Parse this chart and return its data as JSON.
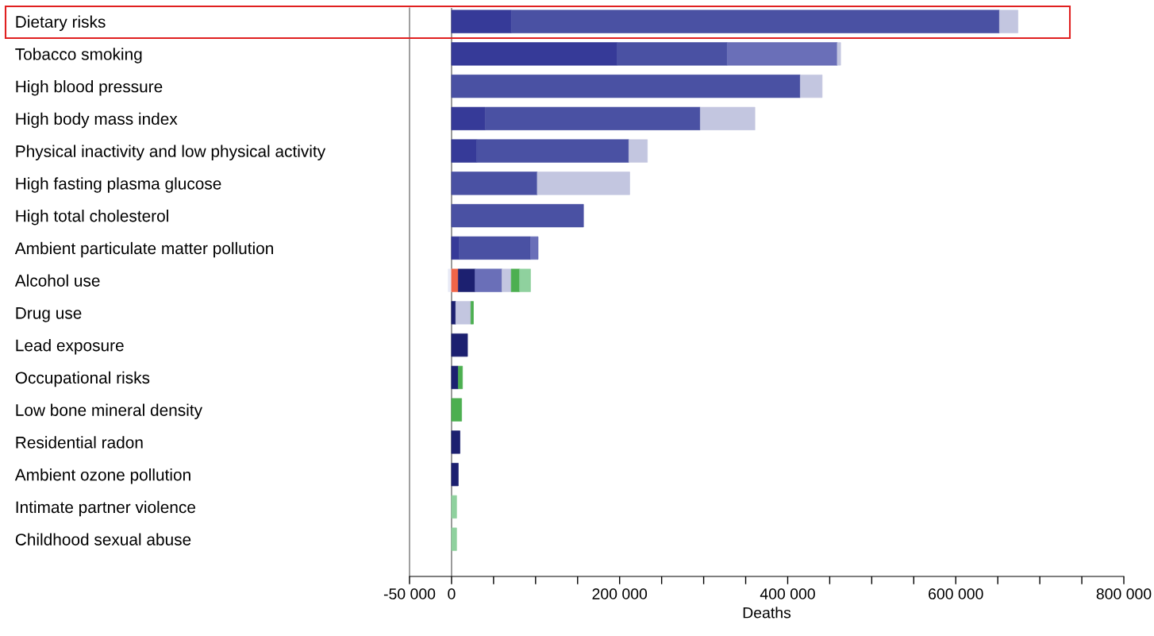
{
  "chart_data": {
    "type": "bar",
    "orientation": "horizontal",
    "stacked": true,
    "xlabel": "Deaths",
    "categories": [
      "Dietary risks",
      "Tobacco smoking",
      "High blood pressure",
      "High body mass index",
      "Physical inactivity and low physical activity",
      "High fasting plasma glucose",
      "High total cholesterol",
      "Ambient particulate matter pollution",
      "Alcohol use",
      "Drug use",
      "Lead exposure",
      "Occupational risks",
      "Low bone mineral density",
      "Residential radon",
      "Ambient ozone pollution",
      "Intimate partner violence",
      "Childhood sexual abuse"
    ],
    "series": [
      {
        "color": "#e8eaf6",
        "values": [
          0,
          0,
          0,
          0,
          0,
          0,
          0,
          0,
          -4000,
          0,
          0,
          0,
          0,
          0,
          0,
          0,
          0
        ]
      },
      {
        "color": "#ef6548",
        "values": [
          0,
          0,
          0,
          0,
          0,
          0,
          0,
          0,
          8000,
          0,
          0,
          0,
          0,
          0,
          0,
          0,
          0
        ]
      },
      {
        "color": "#1c2070",
        "values": [
          0,
          0,
          0,
          0,
          0,
          0,
          0,
          0,
          20000,
          5000,
          19000,
          8000,
          0,
          10000,
          8000,
          0,
          0
        ]
      },
      {
        "color": "#363a98",
        "values": [
          71000,
          197000,
          0,
          40000,
          30000,
          0,
          0,
          9000,
          0,
          0,
          0,
          0,
          0,
          0,
          0,
          0,
          0
        ]
      },
      {
        "color": "#4a51a3",
        "values": [
          581000,
          131000,
          415000,
          256000,
          181000,
          102000,
          157000,
          85000,
          0,
          0,
          0,
          0,
          0,
          0,
          0,
          0,
          0
        ]
      },
      {
        "color": "#6a6fb8",
        "values": [
          0,
          131000,
          0,
          0,
          0,
          0,
          0,
          9000,
          32000,
          0,
          0,
          0,
          0,
          0,
          0,
          0,
          0
        ]
      },
      {
        "color": "#c3c6e0",
        "values": [
          22000,
          4000,
          26000,
          65000,
          22000,
          110000,
          0,
          0,
          11000,
          18000,
          0,
          0,
          0,
          0,
          0,
          0,
          0
        ]
      },
      {
        "color": "#4caf50",
        "values": [
          0,
          0,
          0,
          0,
          0,
          0,
          0,
          0,
          10000,
          3000,
          0,
          5000,
          12000,
          0,
          0,
          0,
          0
        ]
      },
      {
        "color": "#8fd19e",
        "values": [
          0,
          0,
          0,
          0,
          0,
          0,
          0,
          0,
          13000,
          0,
          0,
          0,
          0,
          0,
          0,
          6000,
          6000
        ]
      }
    ],
    "xlim": [
      -50000,
      800000
    ],
    "xticks": [
      {
        "value": -50000,
        "label": "-50 000"
      },
      {
        "value": 0,
        "label": "0"
      },
      {
        "value": 50000,
        "label": null
      },
      {
        "value": 100000,
        "label": null
      },
      {
        "value": 150000,
        "label": null
      },
      {
        "value": 200000,
        "label": "200 000"
      },
      {
        "value": 250000,
        "label": null
      },
      {
        "value": 300000,
        "label": null
      },
      {
        "value": 350000,
        "label": null
      },
      {
        "value": 400000,
        "label": "400 000"
      },
      {
        "value": 450000,
        "label": null
      },
      {
        "value": 500000,
        "label": null
      },
      {
        "value": 550000,
        "label": null
      },
      {
        "value": 600000,
        "label": "600 000"
      },
      {
        "value": 650000,
        "label": null
      },
      {
        "value": 700000,
        "label": null
      },
      {
        "value": 750000,
        "label": null
      },
      {
        "value": 800000,
        "label": "800 000"
      }
    ],
    "ref_lines": [
      {
        "axis": "x",
        "value": 0,
        "color": "#888888"
      }
    ],
    "grid": false,
    "legend": false
  }
}
